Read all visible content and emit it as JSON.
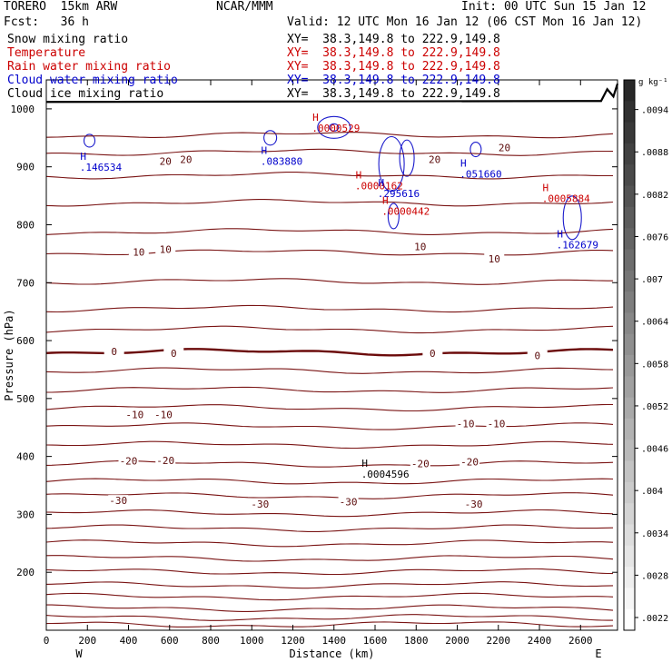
{
  "header": {
    "model": "TORERO  15km ARW",
    "center": "NCAR/MMM",
    "init": "Init: 00 UTC Sun 15 Jan 12",
    "fcst": "Fcst:   36 h",
    "valid": "Valid: 12 UTC Mon 16 Jan 12 (06 CST Mon 16 Jan 12)"
  },
  "fields": [
    {
      "name": "Snow mixing ratio",
      "xy": "XY=  38.3,149.8 to 222.9,149.8",
      "color": "#000000"
    },
    {
      "name": "Temperature",
      "xy": "XY=  38.3,149.8 to 222.9,149.8",
      "color": "#cc0000"
    },
    {
      "name": "Rain water mixing ratio",
      "xy": "XY=  38.3,149.8 to 222.9,149.8",
      "color": "#cc0000"
    },
    {
      "name": "Cloud water mixing ratio",
      "xy": "XY=  38.3,149.8 to 222.9,149.8",
      "color": "#0000cc"
    },
    {
      "name": "Cloud ice mixing ratio",
      "xy": "XY=  38.3,149.8 to 222.9,149.8",
      "color": "#000000"
    }
  ],
  "chart_data": {
    "type": "contour",
    "xlabel": "Distance (km)",
    "ylabel": "Pressure (hPa)",
    "xlim": [
      0,
      2780
    ],
    "ylim_hpa": [
      1050,
      100
    ],
    "x_ticks": [
      0,
      200,
      400,
      600,
      800,
      1000,
      1200,
      1400,
      1600,
      1800,
      2000,
      2200,
      2400,
      2600
    ],
    "x_tick_labels": [
      "0",
      "200",
      "400",
      "600",
      "800",
      "1000",
      "1200",
      "1400",
      "1600",
      "1800",
      "2000",
      "2200",
      "2400",
      "2600"
    ],
    "y_ticks": [
      200,
      300,
      400,
      500,
      600,
      700,
      800,
      900,
      1000
    ],
    "y_tick_labels": [
      "200",
      "300",
      "400",
      "500",
      "600",
      "700",
      "800",
      "900",
      "1000"
    ],
    "end_labels": {
      "left": "W",
      "right": "E"
    },
    "isotherm_pressures": [
      955,
      925,
      885,
      838,
      788,
      752,
      702,
      655,
      619,
      580,
      548,
      515,
      484,
      452,
      420,
      387,
      357,
      332,
      302,
      276,
      250,
      224,
      201,
      178,
      158,
      138,
      122,
      110
    ],
    "zero_isotherm_index": 9,
    "ground_pressure": 1012,
    "temperature_labels": [
      {
        "text": "-30",
        "x": 350,
        "p": 324
      },
      {
        "text": "-30",
        "x": 1040,
        "p": 318
      },
      {
        "text": "-30",
        "x": 1470,
        "p": 322
      },
      {
        "text": "-30",
        "x": 2080,
        "p": 318
      },
      {
        "text": "-20",
        "x": 400,
        "p": 392
      },
      {
        "text": "-20",
        "x": 580,
        "p": 393
      },
      {
        "text": "-20",
        "x": 1820,
        "p": 388
      },
      {
        "text": "-20",
        "x": 2060,
        "p": 391
      },
      {
        "text": "-10",
        "x": 430,
        "p": 472
      },
      {
        "text": "-10",
        "x": 570,
        "p": 472
      },
      {
        "text": "-10",
        "x": 2040,
        "p": 457
      },
      {
        "text": "-10",
        "x": 2190,
        "p": 457
      },
      {
        "text": "0",
        "x": 330,
        "p": 581
      },
      {
        "text": "0",
        "x": 620,
        "p": 578
      },
      {
        "text": "0",
        "x": 1880,
        "p": 578
      },
      {
        "text": "0",
        "x": 2390,
        "p": 574
      },
      {
        "text": "10",
        "x": 450,
        "p": 753
      },
      {
        "text": "10",
        "x": 580,
        "p": 758
      },
      {
        "text": "10",
        "x": 1820,
        "p": 762
      },
      {
        "text": "10",
        "x": 2180,
        "p": 741
      },
      {
        "text": "20",
        "x": 580,
        "p": 910
      },
      {
        "text": "20",
        "x": 680,
        "p": 913
      },
      {
        "text": "20",
        "x": 1890,
        "p": 913
      },
      {
        "text": "20",
        "x": 2230,
        "p": 933
      }
    ],
    "annotations": [
      {
        "marker": "H",
        "value": ".0004596",
        "x": 1550,
        "p": 376,
        "color": "#000000"
      },
      {
        "marker": "H",
        "value": ".146534",
        "x": 180,
        "p": 906,
        "color": "#0000cc"
      },
      {
        "marker": "H",
        "value": ".083880",
        "x": 1060,
        "p": 916,
        "color": "#0000cc"
      },
      {
        "marker": "H",
        "value": ".0000529",
        "x": 1310,
        "p": 973,
        "color": "#cc0000"
      },
      {
        "marker": "H",
        "value": ".0000162",
        "x": 1520,
        "p": 874,
        "color": "#cc0000"
      },
      {
        "marker": "H",
        "value": ".295616",
        "x": 1630,
        "p": 860,
        "color": "#0000cc"
      },
      {
        "marker": "H",
        "value": ".0000442",
        "x": 1650,
        "p": 830,
        "color": "#cc0000"
      },
      {
        "marker": "H",
        "value": ".051660",
        "x": 2030,
        "p": 894,
        "color": "#0000cc"
      },
      {
        "marker": "H",
        "value": ".162679",
        "x": 2500,
        "p": 772,
        "color": "#0000cc"
      },
      {
        "marker": "H",
        "value": ".0005884",
        "x": 2430,
        "p": 852,
        "color": "#cc0000"
      }
    ],
    "colorbar": {
      "unit": "g kg⁻¹",
      "tick_labels": [
        ".0094",
        ".0088",
        ".0082",
        ".0076",
        ".007",
        ".0064",
        ".0058",
        ".0052",
        ".0046",
        ".004",
        ".0034",
        ".0028",
        ".0022"
      ]
    }
  }
}
